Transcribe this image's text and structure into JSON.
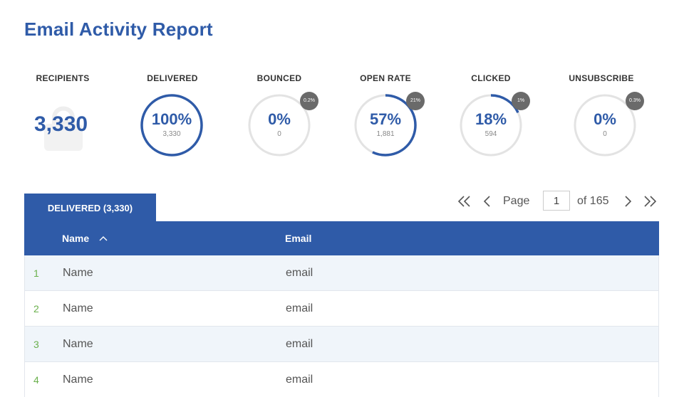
{
  "report": {
    "title": "Email Activity Report"
  },
  "stats": {
    "recipients": {
      "label": "RECIPIENTS",
      "value": "3,330",
      "icon": "user-silhouette-icon"
    },
    "delivered": {
      "label": "DELIVERED",
      "pct": "100%",
      "count": "3,330",
      "fraction": 1.0
    },
    "bounced": {
      "label": "BOUNCED",
      "pct": "0%",
      "count": "0",
      "badge": "0.2%",
      "fraction": 0.0
    },
    "open_rate": {
      "label": "OPEN RATE",
      "pct": "57%",
      "count": "1,881",
      "badge": "21%",
      "fraction": 0.57
    },
    "clicked": {
      "label": "CLICKED",
      "pct": "18%",
      "count": "594",
      "badge": "1%",
      "fraction": 0.18
    },
    "unsubscribe": {
      "label": "UNSUBSCRIBE",
      "pct": "0%",
      "count": "0",
      "badge": "0.3%",
      "fraction": 0.0
    }
  },
  "tab": {
    "label": "DELIVERED (3,330)"
  },
  "pagination": {
    "page_label": "Page",
    "current_page": "1",
    "of_label": "of 165"
  },
  "table": {
    "columns": {
      "name": "Name",
      "email": "Email"
    },
    "rows": [
      {
        "num": "1",
        "name": "Name",
        "email": "email"
      },
      {
        "num": "2",
        "name": "Name",
        "email": "email"
      },
      {
        "num": "3",
        "name": "Name",
        "email": "email"
      },
      {
        "num": "4",
        "name": "Name",
        "email": "email"
      }
    ]
  },
  "colors": {
    "accent": "#2f5ba8",
    "ring_track": "#e3e3e3",
    "badge": "#6a6a6a",
    "row_number": "#6ab04c"
  }
}
